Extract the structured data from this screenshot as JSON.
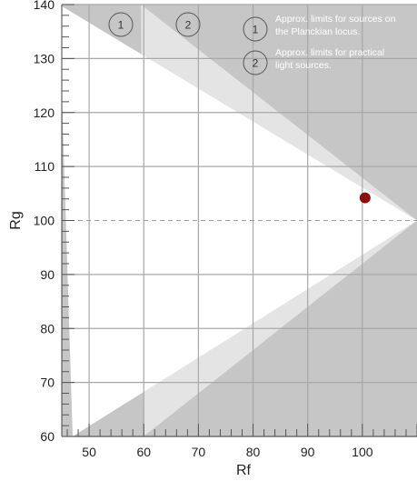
{
  "chart_data": {
    "type": "scatter",
    "title": "",
    "xlabel": "Rf",
    "ylabel": "Rg",
    "xlim": [
      45,
      110
    ],
    "ylim": [
      60,
      140
    ],
    "x_ticks": [
      50,
      60,
      70,
      80,
      90,
      100
    ],
    "y_ticks": [
      60,
      70,
      80,
      90,
      100,
      110,
      120,
      130,
      140
    ],
    "reference_line_y": 100,
    "points": [
      {
        "x": 100.5,
        "y": 104.2,
        "color": "#8b0f0f"
      }
    ],
    "regions": [
      {
        "id": "1",
        "label": "Approx. limits for sources on the Planckian locus.",
        "color": "#ffffff",
        "polygon": [
          [
            44.5,
            140
          ],
          [
            110,
            100
          ],
          [
            47,
            60
          ]
        ]
      },
      {
        "id": "2",
        "label": "Approx. limits for practical light sources.",
        "color": "#e4e4e4",
        "polygon": [
          [
            59.5,
            140
          ],
          [
            110,
            100
          ],
          [
            60,
            60
          ]
        ]
      }
    ],
    "background_color": "#c6c6c6",
    "legend": {
      "position": "top-right",
      "entries": [
        {
          "id": "1",
          "text_lines": [
            "Approx. limits for sources on",
            "the Planckian locus."
          ]
        },
        {
          "id": "2",
          "text_lines": [
            "Approx. limits for practical",
            "light sources."
          ]
        }
      ]
    },
    "region_markers": [
      "1",
      "2"
    ],
    "grid": true
  }
}
